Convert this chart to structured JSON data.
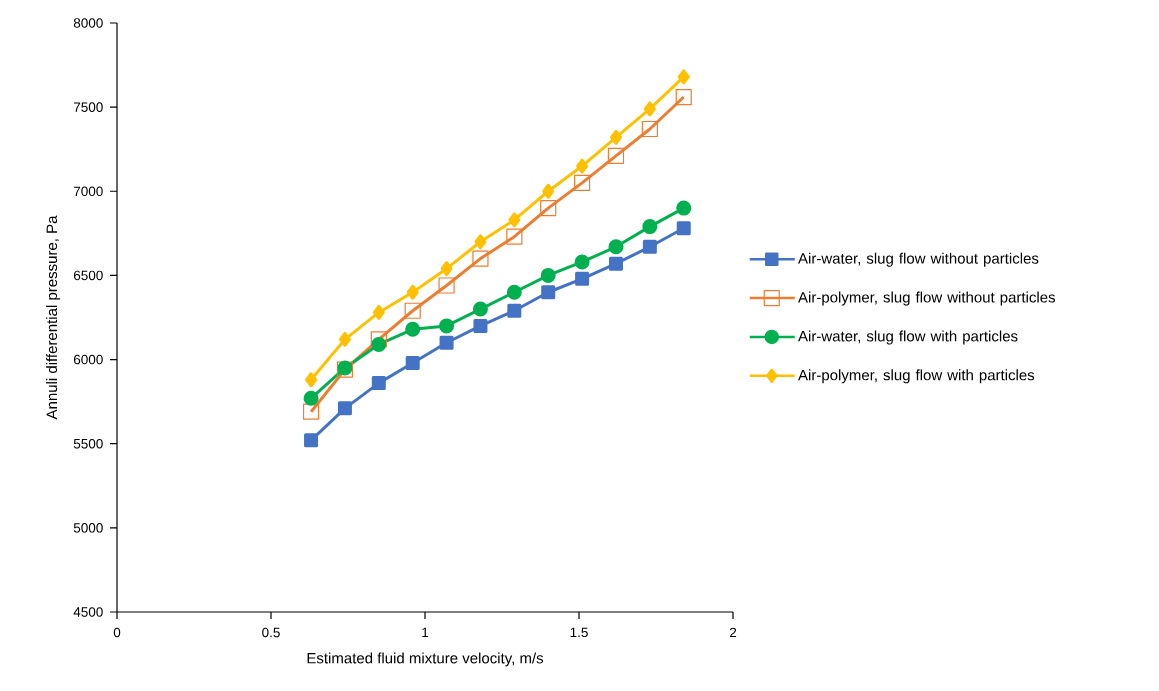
{
  "chart_data": {
    "type": "line",
    "xlabel": "Estimated fluid mixture velocity, m/s",
    "ylabel": "Annuli differential pressure, Pa",
    "x": [
      0.63,
      0.74,
      0.85,
      0.96,
      1.07,
      1.18,
      1.29,
      1.4,
      1.51,
      1.62,
      1.73,
      1.84
    ],
    "series": [
      {
        "name": "Air-water, slug flow without particles",
        "color": "#4472c4",
        "marker": "square",
        "values": [
          5520,
          5710,
          5860,
          5980,
          6100,
          6200,
          6290,
          6400,
          6480,
          6570,
          6670,
          6780
        ]
      },
      {
        "name": "Air-polymer, slug flow without particles",
        "color": "#ed7d31",
        "marker": "square-open",
        "values": [
          5690,
          5940,
          6120,
          6290,
          6440,
          6600,
          6730,
          6900,
          7050,
          7210,
          7370,
          7560
        ]
      },
      {
        "name": "Air-water, slug flow with particles",
        "color": "#00b050",
        "marker": "circle",
        "values": [
          5770,
          5950,
          6090,
          6180,
          6200,
          6300,
          6400,
          6500,
          6580,
          6670,
          6790,
          6900
        ]
      },
      {
        "name": "Air-polymer, slug flow with particles",
        "color": "#ffc000",
        "marker": "diamond",
        "values": [
          5880,
          6120,
          6280,
          6400,
          6540,
          6700,
          6830,
          7000,
          7150,
          7320,
          7490,
          7680
        ]
      }
    ],
    "xlim": [
      0,
      2
    ],
    "xticks": [
      0,
      0.5,
      1,
      1.5,
      2
    ],
    "ylim": [
      4500,
      8000
    ],
    "yticks": [
      4500,
      5000,
      5500,
      6000,
      6500,
      7000,
      7500,
      8000
    ],
    "grid": false,
    "legend": "right",
    "line_style": "solid"
  }
}
